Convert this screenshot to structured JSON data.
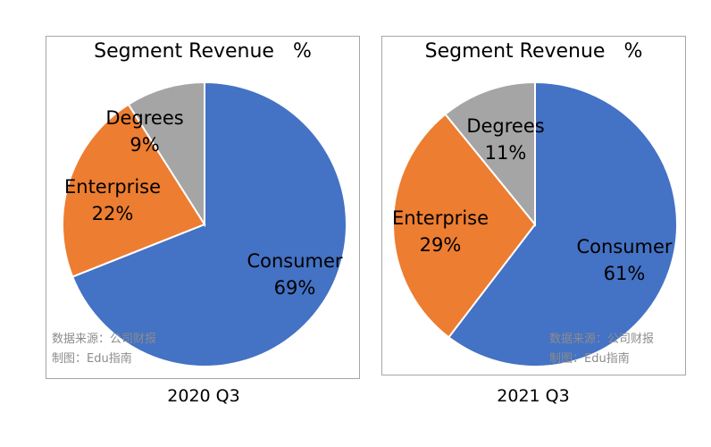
{
  "chart_data": [
    {
      "type": "pie",
      "title": "Segment Revenue   %",
      "caption": "2020 Q3",
      "source_line1": "数据来源：公司财报",
      "source_line2": "制图：Edu指南",
      "slices": [
        {
          "name": "Consumer",
          "value": 69,
          "label": "69%",
          "color": "#4472c4"
        },
        {
          "name": "Enterprise",
          "value": 22,
          "label": "22%",
          "color": "#ed7d31"
        },
        {
          "name": "Degrees",
          "value": 9,
          "label": "9%",
          "color": "#a5a5a5"
        }
      ]
    },
    {
      "type": "pie",
      "title": "Segment Revenue   %",
      "caption": "2021 Q3",
      "source_line1": "数据来源：公司财报",
      "source_line2": "制图：Edu指南",
      "slices": [
        {
          "name": "Consumer",
          "value": 61,
          "label": "61%",
          "color": "#4472c4"
        },
        {
          "name": "Enterprise",
          "value": 29,
          "label": "29%",
          "color": "#ed7d31"
        },
        {
          "name": "Degrees",
          "value": 11,
          "label": "11%",
          "color": "#a5a5a5"
        }
      ]
    }
  ]
}
